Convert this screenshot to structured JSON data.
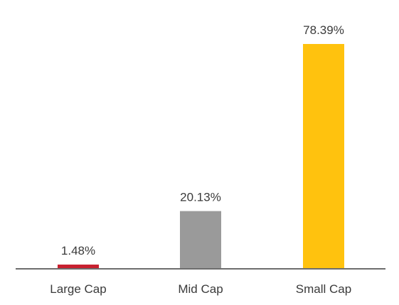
{
  "chart_data": {
    "type": "bar",
    "categories": [
      "Large Cap",
      "Mid Cap",
      "Small Cap"
    ],
    "values": [
      1.48,
      20.13,
      78.39
    ],
    "data_labels": [
      "1.48%",
      "20.13%",
      "78.39%"
    ],
    "colors": [
      "#c8202f",
      "#9a9a9a",
      "#ffc20e"
    ],
    "axis_color": "#6d6d6d",
    "ylim": [
      0,
      78.39
    ],
    "grid": false,
    "legend": "none"
  }
}
